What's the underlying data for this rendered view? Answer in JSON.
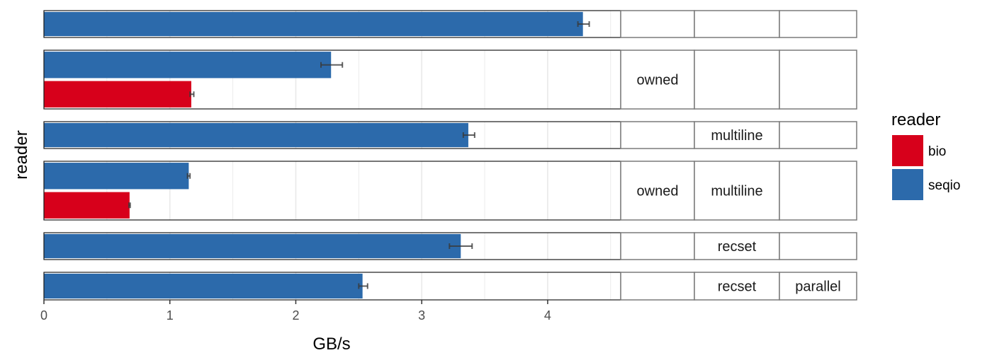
{
  "chart_data": {
    "type": "bar",
    "orientation": "horizontal",
    "faceted": true,
    "xlabel": "GB/s",
    "ylabel": "reader",
    "xlim": [
      0,
      4.58
    ],
    "x_ticks": [
      0,
      1,
      2,
      3,
      4
    ],
    "grid": true,
    "legend": {
      "title": "reader",
      "position": "right",
      "entries": [
        {
          "name": "bio",
          "color": "#d7001b"
        },
        {
          "name": "seqio",
          "color": "#2c6aab"
        }
      ]
    },
    "facets": [
      {
        "strips": [
          "",
          "",
          ""
        ],
        "bars": [
          {
            "reader": "seqio",
            "value": 4.28,
            "err_low": 4.24,
            "err_high": 4.33
          }
        ]
      },
      {
        "strips": [
          "owned",
          "",
          ""
        ],
        "bars": [
          {
            "reader": "seqio",
            "value": 2.28,
            "err_low": 2.2,
            "err_high": 2.37
          },
          {
            "reader": "bio",
            "value": 1.17,
            "err_low": 1.16,
            "err_high": 1.19
          }
        ]
      },
      {
        "strips": [
          "",
          "multiline",
          ""
        ],
        "bars": [
          {
            "reader": "seqio",
            "value": 3.37,
            "err_low": 3.33,
            "err_high": 3.42
          }
        ]
      },
      {
        "strips": [
          "owned",
          "multiline",
          ""
        ],
        "bars": [
          {
            "reader": "seqio",
            "value": 1.15,
            "err_low": 1.14,
            "err_high": 1.16
          },
          {
            "reader": "bio",
            "value": 0.68,
            "err_low": 0.675,
            "err_high": 0.685
          }
        ]
      },
      {
        "strips": [
          "",
          "recset",
          ""
        ],
        "bars": [
          {
            "reader": "seqio",
            "value": 3.31,
            "err_low": 3.22,
            "err_high": 3.4
          }
        ]
      },
      {
        "strips": [
          "",
          "recset",
          "parallel"
        ],
        "bars": [
          {
            "reader": "seqio",
            "value": 2.53,
            "err_low": 2.5,
            "err_high": 2.57
          }
        ]
      }
    ]
  }
}
